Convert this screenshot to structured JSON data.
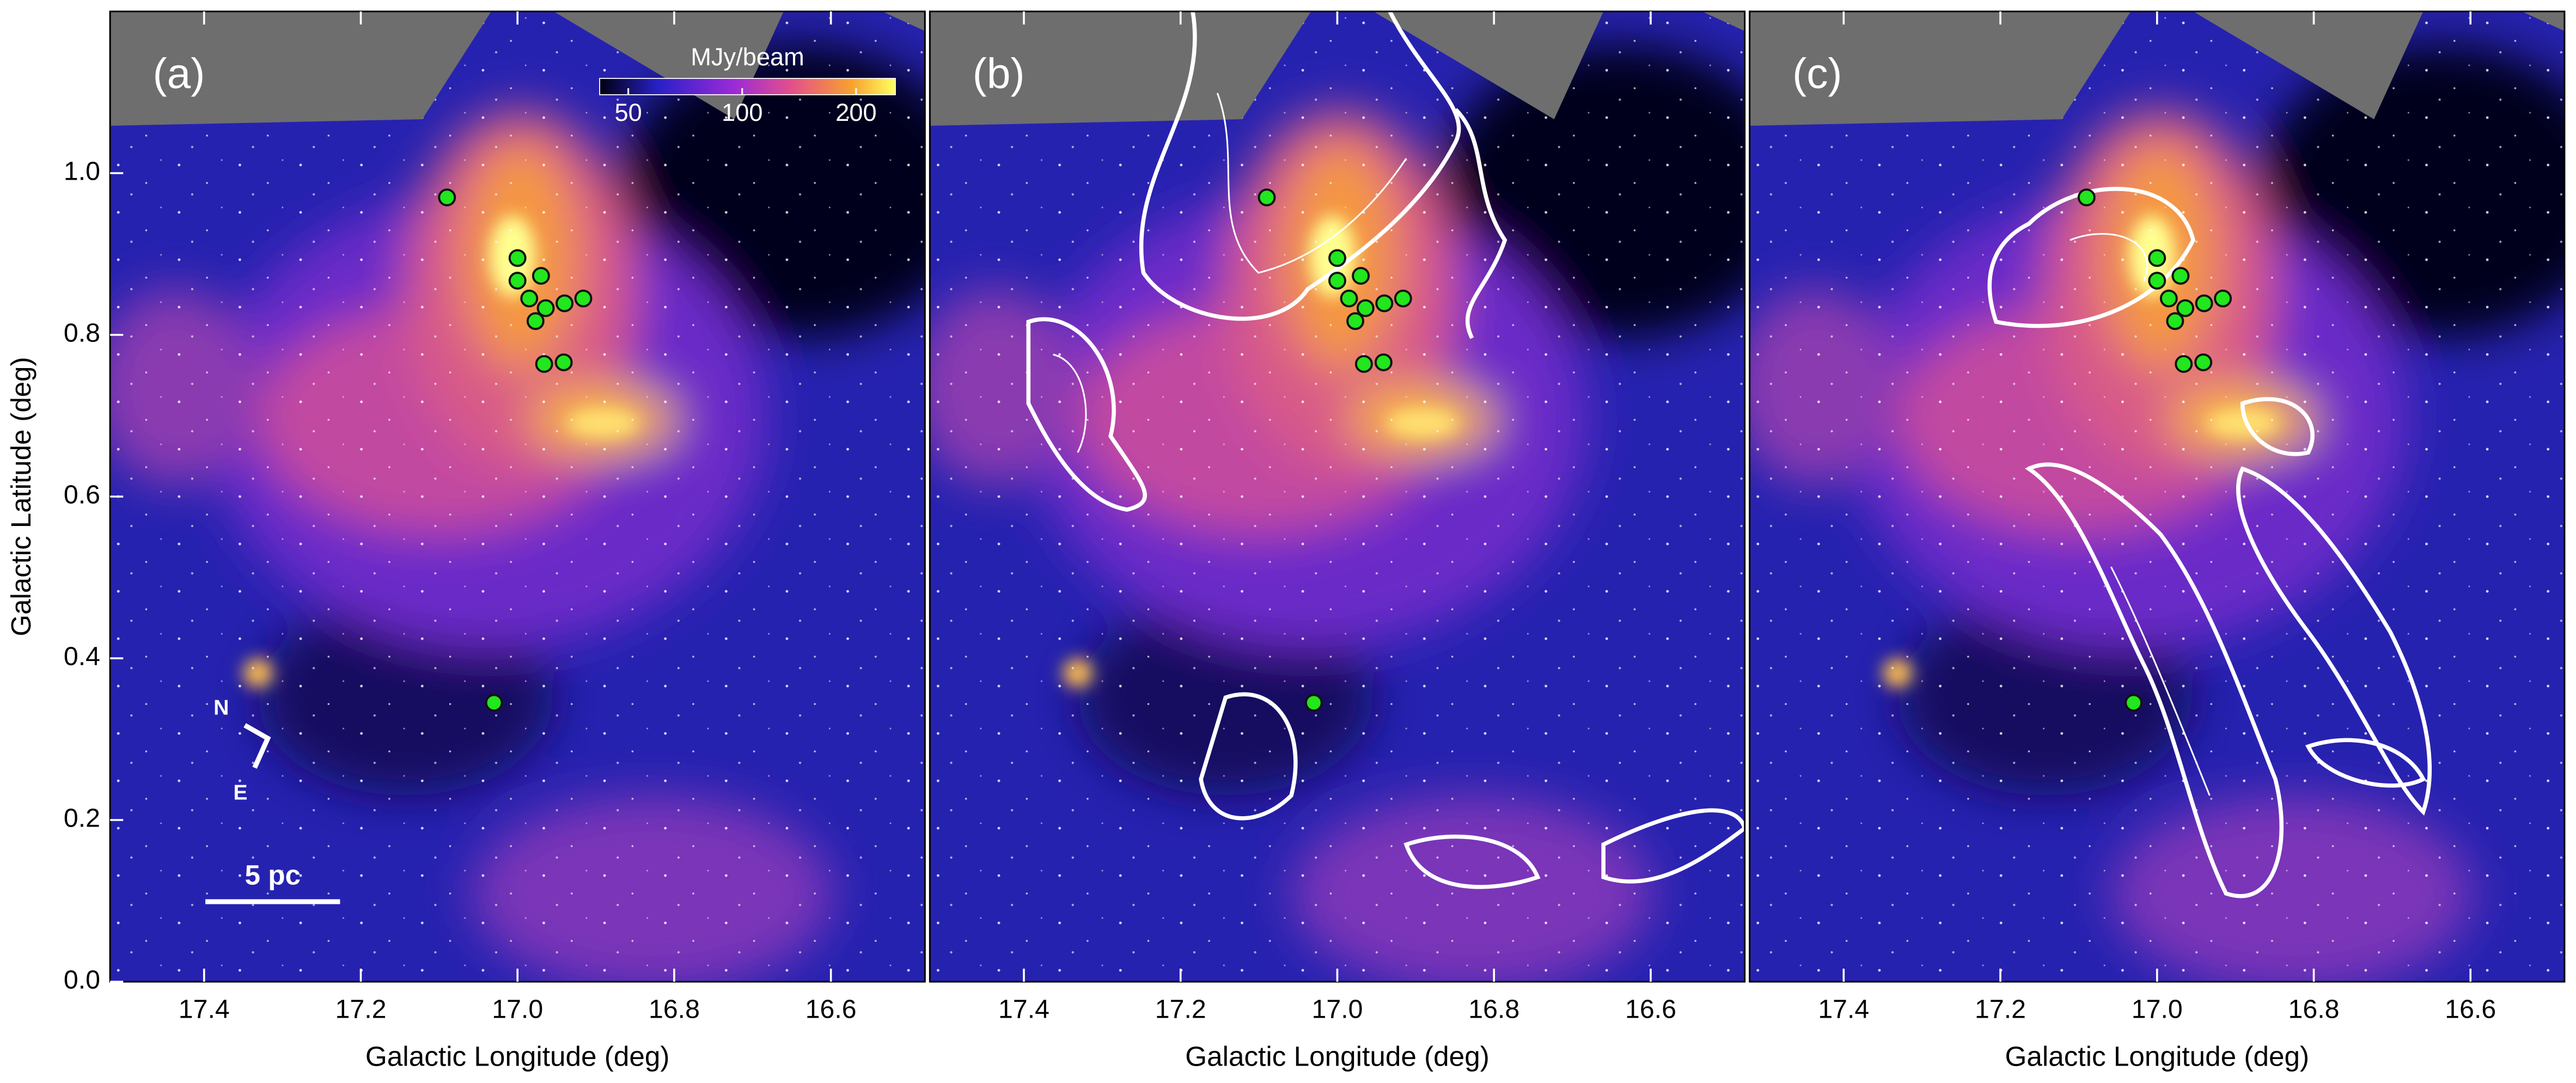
{
  "chart_data": [
    {
      "type": "scatter",
      "panel_label": "(a)",
      "xlabel": "Galactic Longitude (deg)",
      "ylabel": "Galactic Latitude (deg)",
      "xlim": [
        17.52,
        16.48
      ],
      "ylim": [
        0,
        1.2
      ],
      "xticks": [
        17.4,
        17.2,
        {
          "value": 17.0,
          "label": "17.0"
        },
        16.8,
        16.6
      ],
      "yticks": [
        {
          "value": 0,
          "label": "0.0"
        },
        0.2,
        0.4,
        0.6,
        0.8,
        {
          "value": 1,
          "label": "1.0"
        }
      ],
      "series": [
        {
          "color": "#22e61e",
          "x": [
            17.09,
            17.0,
            16.97,
            17.0,
            16.985,
            16.964,
            16.94,
            16.916,
            16.977,
            16.966,
            16.941,
            17.03
          ],
          "y": [
            0.97,
            0.895,
            0.873,
            0.867,
            0.845,
            0.833,
            0.839,
            0.845,
            0.817,
            0.764,
            0.766,
            0.345
          ]
        }
      ],
      "colorbar": {
        "label": "MJy/beam",
        "lim": [
          42,
          254
        ],
        "ticks": [
          50,
          100,
          200
        ],
        "log": true
      },
      "scalebar": "5 pc",
      "compass": [
        "N",
        "E"
      ]
    },
    {
      "type": "scatter",
      "panel_label": "(b)",
      "xlabel": "Galactic Longitude (deg)",
      "xlim": [
        17.52,
        16.48
      ],
      "ylim": [
        0,
        1.2
      ],
      "xticks": [
        17.4,
        17.2,
        {
          "value": 17.0,
          "label": "17.0"
        },
        16.8,
        16.6
      ],
      "series": [
        {
          "color": "#22e61e",
          "x": [
            17.09,
            17.0,
            16.97,
            17.0,
            16.985,
            16.964,
            16.94,
            16.916,
            16.977,
            16.966,
            16.941,
            17.03
          ],
          "y": [
            0.97,
            0.895,
            0.873,
            0.867,
            0.845,
            0.833,
            0.839,
            0.845,
            0.817,
            0.764,
            0.766,
            0.345
          ]
        }
      ]
    },
    {
      "type": "scatter",
      "panel_label": "(c)",
      "xlabel": "Galactic Longitude (deg)",
      "xlim": [
        17.52,
        16.48
      ],
      "ylim": [
        0,
        1.2
      ],
      "xticks": [
        17.4,
        17.2,
        {
          "value": 17.0,
          "label": "17.0"
        },
        16.8,
        16.6
      ],
      "series": [
        {
          "color": "#22e61e",
          "x": [
            17.09,
            17.0,
            16.97,
            17.0,
            16.985,
            16.964,
            16.94,
            16.916,
            16.977,
            16.966,
            16.941,
            17.03
          ],
          "y": [
            0.97,
            0.895,
            0.873,
            0.867,
            0.845,
            0.833,
            0.839,
            0.845,
            0.817,
            0.764,
            0.766,
            0.345
          ]
        }
      ]
    }
  ]
}
